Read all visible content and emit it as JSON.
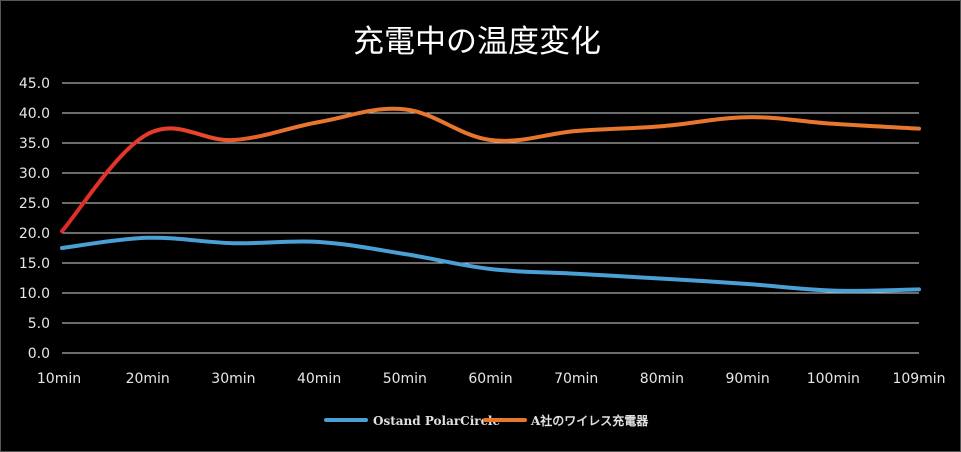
{
  "chart_data": {
    "type": "line",
    "title": "充電中の温度変化",
    "xlabel": "",
    "ylabel": "",
    "categories": [
      "10min",
      "20min",
      "30min",
      "40min",
      "50min",
      "60min",
      "70min",
      "80min",
      "90min",
      "100min",
      "109min"
    ],
    "ylim": [
      0,
      45
    ],
    "yticks": [
      "0.0",
      "5.0",
      "10.0",
      "15.0",
      "20.0",
      "25.0",
      "30.0",
      "35.0",
      "40.0",
      "45.0"
    ],
    "grid": true,
    "legend_position": "bottom",
    "series": [
      {
        "name": "Ostand PolarCircle",
        "color": "#4a9fd4",
        "values": [
          17.5,
          19.2,
          18.3,
          18.5,
          16.5,
          14.0,
          13.2,
          12.4,
          11.5,
          10.4,
          10.6
        ]
      },
      {
        "name": "A社のワイレス充電器",
        "color": "#e8772e",
        "start_color": "#e02a2a",
        "values": [
          20.3,
          36.5,
          35.5,
          38.5,
          40.6,
          35.5,
          37.0,
          37.8,
          39.3,
          38.2,
          37.4
        ]
      }
    ]
  }
}
